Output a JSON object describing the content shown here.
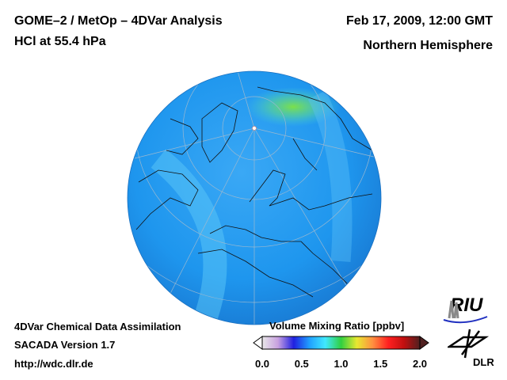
{
  "header": {
    "title_line1": "GOME–2 / MetOp – 4DVar Analysis",
    "title_line2": "HCl at 55.4 hPa",
    "date": "Feb 17, 2009, 12:00 GMT",
    "region": "Northern Hemisphere"
  },
  "footer": {
    "line1": "4DVar Chemical Data Assimilation",
    "line2": "SACADA Version 1.7",
    "line3": "http://wdc.dlr.de"
  },
  "colorbar": {
    "title": "Volume Mixing Ratio [ppbv]",
    "ticks": [
      "0.0",
      "0.5",
      "1.0",
      "1.5",
      "2.0"
    ],
    "range": [
      0.0,
      2.0
    ],
    "colors": [
      "#e8e8e8",
      "#c8a0e0",
      "#2020e0",
      "#20a0ff",
      "#40e8ff",
      "#30d040",
      "#e8e830",
      "#ff9040",
      "#ff2020",
      "#c01010",
      "#502020"
    ]
  },
  "logos": {
    "riu": "RIU",
    "dlr": "DLR"
  },
  "map": {
    "projection": "orthographic",
    "ocean_color": "#1e9bf0"
  }
}
